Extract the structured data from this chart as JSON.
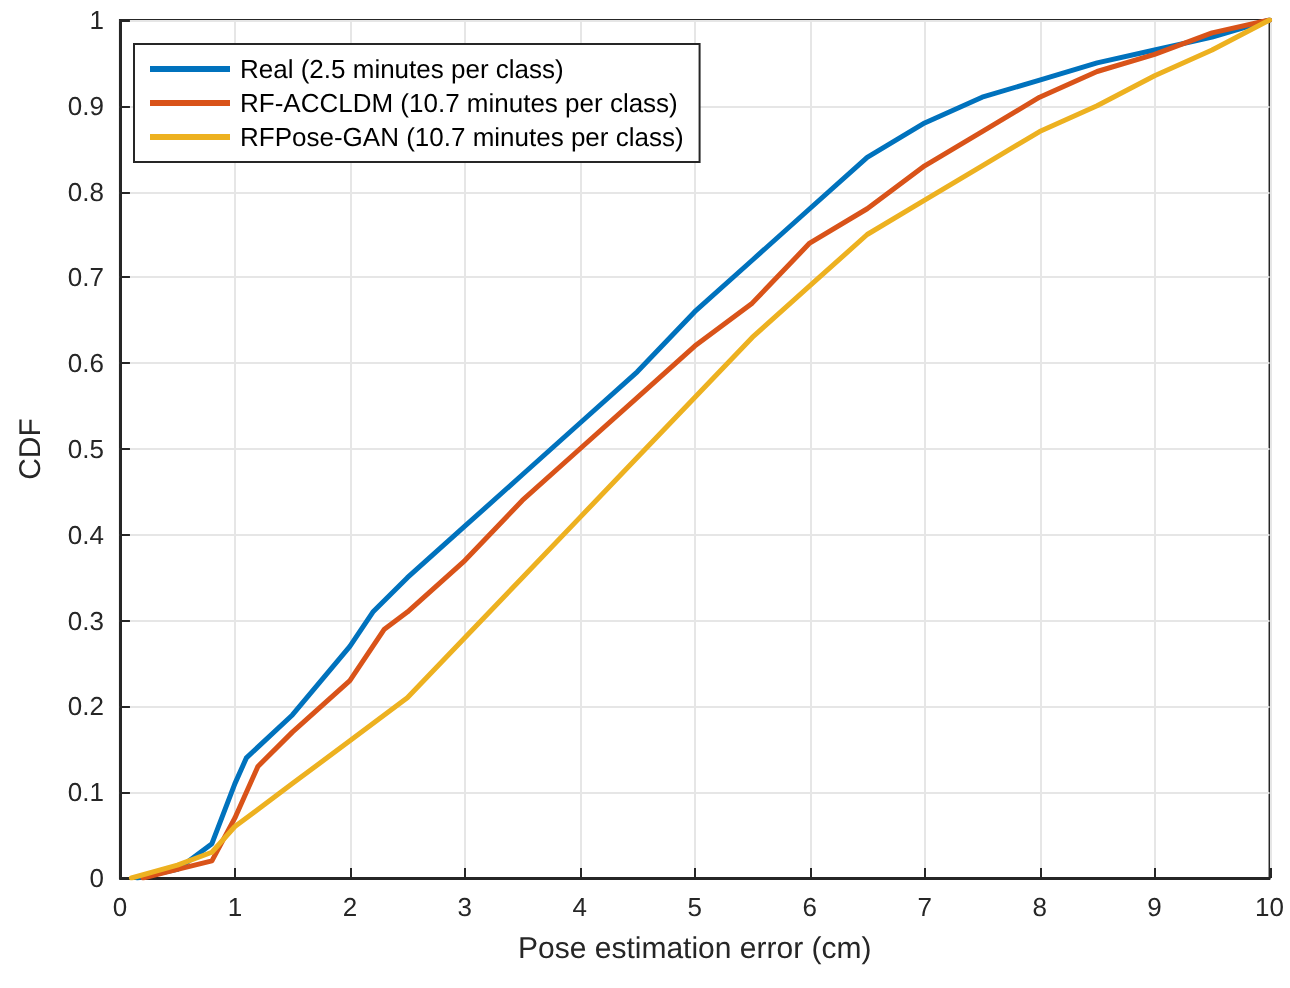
{
  "chart_data": {
    "type": "line",
    "xlabel": "Pose estimation error (cm)",
    "ylabel": "CDF",
    "xlim": [
      0,
      10
    ],
    "xticks": [
      0,
      1,
      2,
      3,
      4,
      5,
      6,
      7,
      8,
      9,
      10
    ],
    "ylim": [
      0,
      1
    ],
    "yticks": [
      0,
      0.1,
      0.2,
      0.3,
      0.4,
      0.5,
      0.6,
      0.7,
      0.8,
      0.9,
      1
    ],
    "grid": true,
    "legend": "top left",
    "marker": "none",
    "line_style": "solid",
    "series": [
      {
        "name": "Real (2.5 minutes per class)",
        "color": "#0072bd",
        "x": [
          0.15,
          0.5,
          0.8,
          1.0,
          1.1,
          1.5,
          2.0,
          2.2,
          2.5,
          3.0,
          3.5,
          4.0,
          4.5,
          5.0,
          5.5,
          6.0,
          6.5,
          7.0,
          7.5,
          8.0,
          8.5,
          9.0,
          9.5,
          10
        ],
        "values": [
          0,
          0.01,
          0.04,
          0.11,
          0.14,
          0.19,
          0.27,
          0.31,
          0.35,
          0.41,
          0.47,
          0.53,
          0.59,
          0.66,
          0.72,
          0.78,
          0.84,
          0.88,
          0.91,
          0.93,
          0.95,
          0.965,
          0.98,
          1
        ]
      },
      {
        "name": "RF-ACCLDM (10.7 minutes per class)",
        "color": "#d95319",
        "x": [
          0.2,
          0.5,
          0.8,
          1.0,
          1.2,
          1.5,
          2.0,
          2.3,
          2.5,
          3.0,
          3.5,
          4.0,
          4.5,
          5.0,
          5.5,
          6.0,
          6.5,
          7.0,
          7.5,
          8.0,
          8.5,
          9.0,
          9.5,
          10
        ],
        "values": [
          0,
          0.01,
          0.02,
          0.07,
          0.13,
          0.17,
          0.23,
          0.29,
          0.31,
          0.37,
          0.44,
          0.5,
          0.56,
          0.62,
          0.67,
          0.74,
          0.78,
          0.83,
          0.87,
          0.91,
          0.94,
          0.96,
          0.985,
          1
        ]
      },
      {
        "name": "RFPose-GAN (10.7 minutes per class)",
        "color": "#edb120",
        "x": [
          0.1,
          0.5,
          0.8,
          1.0,
          1.5,
          2.0,
          2.5,
          3.0,
          3.5,
          4.0,
          4.5,
          5.0,
          5.5,
          6.0,
          6.5,
          7.0,
          7.5,
          8.0,
          8.5,
          9.0,
          9.5,
          10
        ],
        "values": [
          0,
          0.015,
          0.03,
          0.06,
          0.11,
          0.16,
          0.21,
          0.28,
          0.35,
          0.42,
          0.49,
          0.56,
          0.63,
          0.69,
          0.75,
          0.79,
          0.83,
          0.87,
          0.9,
          0.935,
          0.965,
          1
        ]
      }
    ]
  }
}
